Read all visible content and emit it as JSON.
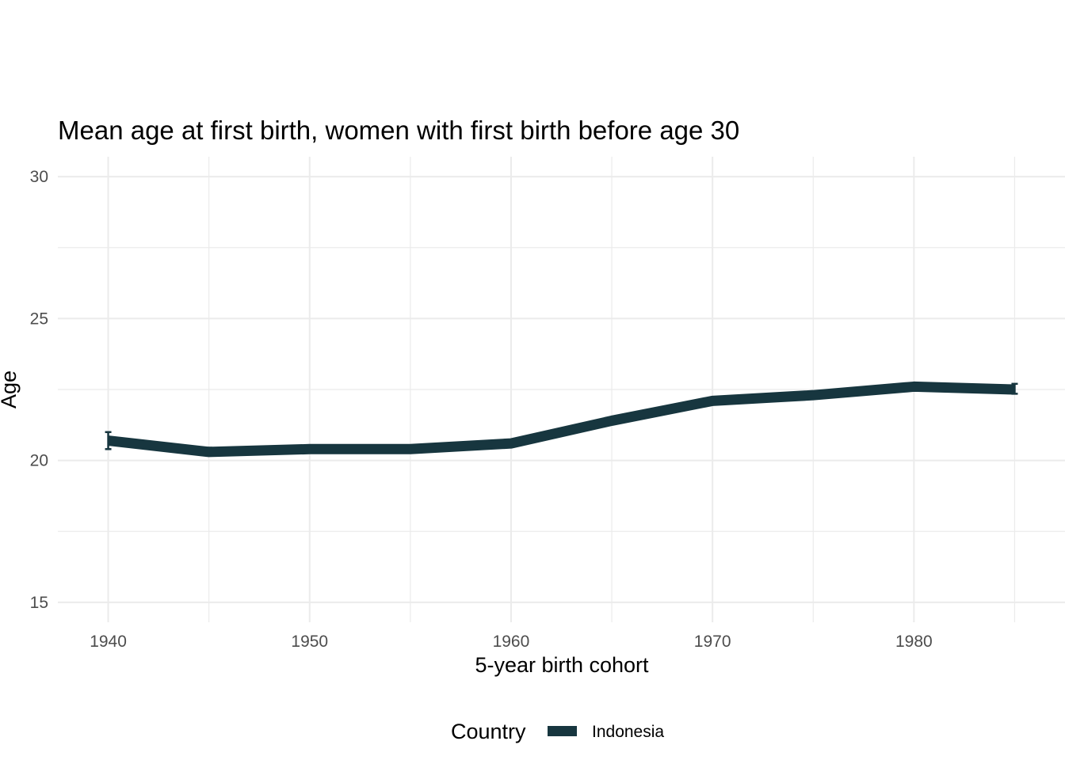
{
  "chart_data": {
    "type": "line",
    "title": "Mean age at first birth, women with first birth before age 30",
    "xlabel": "5-year birth cohort",
    "ylabel": "Age",
    "xlim": [
      1937.5,
      1987.5
    ],
    "ylim": [
      14.3,
      30.7
    ],
    "x_ticks": [
      1940,
      1950,
      1960,
      1970,
      1980
    ],
    "y_ticks": [
      15,
      20,
      25,
      30
    ],
    "grid": true,
    "legend": {
      "title": "Country",
      "position": "bottom"
    },
    "series": [
      {
        "name": "Indonesia",
        "color": "#17363f",
        "x": [
          1940,
          1945,
          1950,
          1955,
          1960,
          1965,
          1970,
          1975,
          1980,
          1985
        ],
        "y": [
          20.7,
          20.3,
          20.4,
          20.4,
          20.6,
          21.4,
          22.1,
          22.3,
          22.6,
          22.5
        ],
        "error_bars": [
          {
            "x": 1940,
            "low": 20.4,
            "high": 21.0
          },
          {
            "x": 1945,
            "low": 20.2,
            "high": 20.45
          },
          {
            "x": 1985,
            "low": 22.35,
            "high": 22.7
          }
        ]
      }
    ]
  }
}
